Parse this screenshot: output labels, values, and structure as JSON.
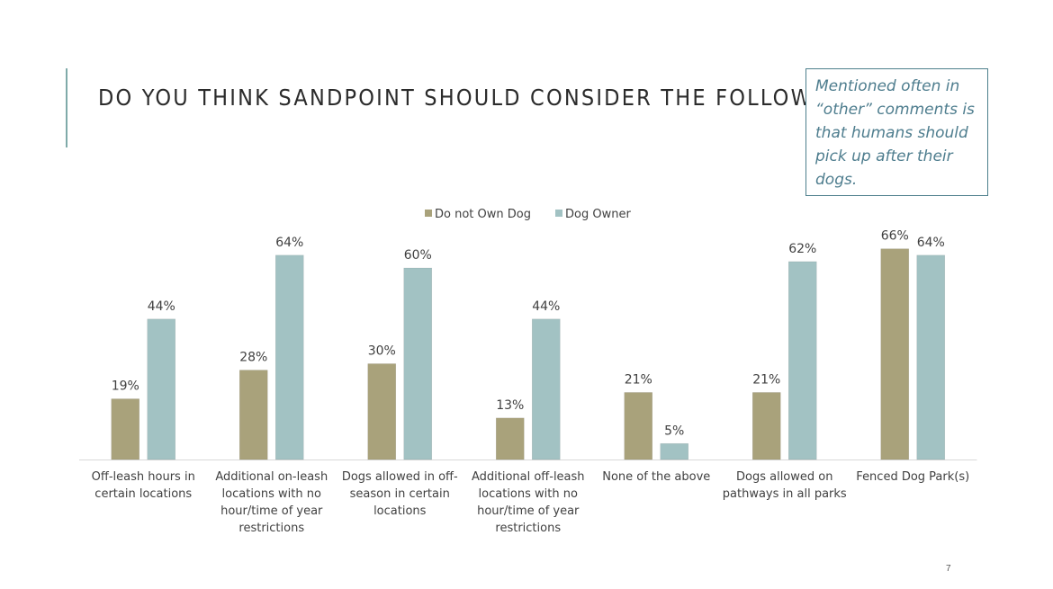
{
  "slide": {
    "title": "DO YOU THINK SANDPOINT SHOULD CONSIDER THE FOLLOWING:",
    "callout": "Mentioned often in “other” comments is that humans should pick up after their dogs.",
    "page_number": "7"
  },
  "colors": {
    "accent": "#7faaa9",
    "callout_border": "#4d7f8c",
    "callout_text": "#4e7d8e",
    "series_1": "#a9a27b",
    "series_2": "#a2c2c3"
  },
  "chart_data": {
    "type": "bar",
    "title": "",
    "xlabel": "",
    "ylabel": "",
    "ylim": [
      0,
      70
    ],
    "grid": false,
    "legend_position": "top-center",
    "value_format": "percent",
    "categories": [
      "Off-leash hours in certain locations",
      "Additional on-leash locations with no hour/time of year restrictions",
      "Dogs allowed in off-season in certain locations",
      "Additional off-leash locations with no hour/time of year restrictions",
      "None of the above",
      "Dogs allowed on pathways in all parks",
      "Fenced Dog Park(s)"
    ],
    "series": [
      {
        "name": "Do not Own Dog",
        "color": "#a9a27b",
        "values": [
          19,
          28,
          30,
          13,
          21,
          21,
          66
        ],
        "labels": [
          "19%",
          "28%",
          "30%",
          "13%",
          "21%",
          "21%",
          "66%"
        ]
      },
      {
        "name": "Dog Owner",
        "color": "#a2c2c3",
        "values": [
          44,
          64,
          60,
          44,
          5,
          62,
          64
        ],
        "labels": [
          "44%",
          "64%",
          "60%",
          "44%",
          "5%",
          "62%",
          "64%"
        ]
      }
    ]
  }
}
